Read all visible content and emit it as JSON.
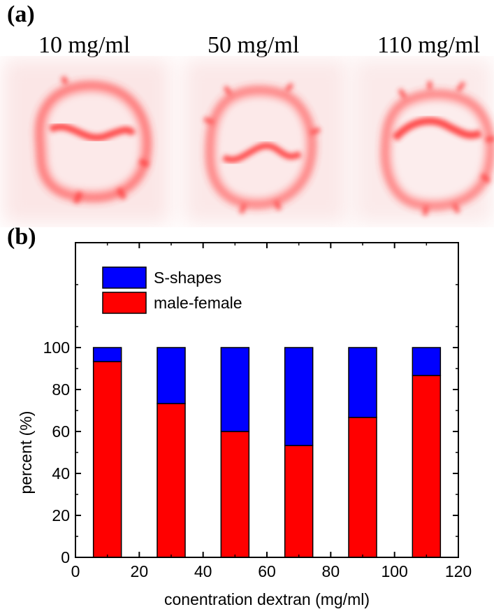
{
  "panel_a": {
    "label": "(a)",
    "images": [
      {
        "title": "10 mg/ml",
        "shape": "s-shape-cell",
        "color": "#ff2a2a"
      },
      {
        "title": "50 mg/ml",
        "shape": "s-shape-cell",
        "color": "#ff2a2a"
      },
      {
        "title": "110 mg/ml",
        "shape": "male-female-cell",
        "color": "#ff2a2a"
      }
    ]
  },
  "panel_b": {
    "label": "(b)"
  },
  "chart_data": {
    "type": "bar",
    "stacked": true,
    "x": [
      10,
      30,
      50,
      70,
      90,
      110
    ],
    "series": [
      {
        "name": "male-female",
        "color": "#ff0000",
        "values": [
          93.3,
          73.3,
          60,
          53.3,
          66.7,
          86.7
        ]
      },
      {
        "name": "S-shapes",
        "color": "#0000ff",
        "values": [
          6.7,
          26.7,
          40,
          46.7,
          33.3,
          13.3
        ]
      }
    ],
    "xlabel": "conentration dextran (mg/ml)",
    "ylabel": "percent (%)",
    "xlim": [
      0,
      120
    ],
    "ylim": [
      0,
      150
    ],
    "xticks": [
      0,
      20,
      40,
      60,
      80,
      100,
      120
    ],
    "yticks": [
      0,
      20,
      40,
      60,
      80,
      100
    ],
    "legend_position": "top-left",
    "legend_order": [
      "S-shapes",
      "male-female"
    ],
    "grid": false
  }
}
